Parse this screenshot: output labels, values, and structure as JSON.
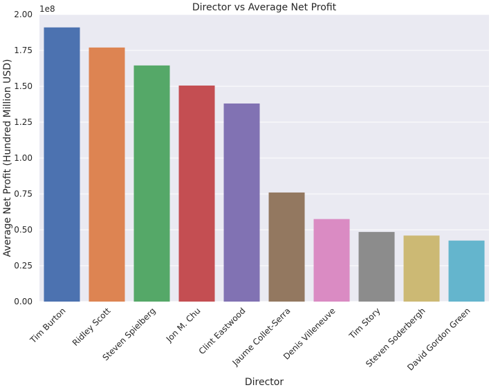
{
  "chart_data": {
    "type": "bar",
    "title": "Director vs Average Net Profit",
    "xlabel": "Director",
    "ylabel": "Average Net Profit (Hundred Million USD)",
    "y_offset_label": "1e8",
    "ylim": [
      0,
      2.0
    ],
    "y_ticks": [
      "0.00",
      "0.25",
      "0.50",
      "0.75",
      "1.00",
      "1.25",
      "1.50",
      "1.75",
      "2.00"
    ],
    "grid": true,
    "categories": [
      "Tim Burton",
      "Ridley Scott",
      "Steven Spielberg",
      "Jon M. Chu",
      "Clint Eastwood",
      "Jaume Collet-Serra",
      "Denis Villeneuve",
      "Tim Story",
      "Steven Soderbergh",
      "David Gordon Green"
    ],
    "values": [
      1.91,
      1.77,
      1.645,
      1.505,
      1.38,
      0.76,
      0.575,
      0.485,
      0.46,
      0.425
    ],
    "colors": [
      "#4c72b0",
      "#dd8452",
      "#55a868",
      "#c44e52",
      "#8172b3",
      "#937860",
      "#da8bc3",
      "#8c8c8c",
      "#ccb974",
      "#64b5cd"
    ],
    "background": "#eaeaf2",
    "grid_color": "#ffffff"
  }
}
